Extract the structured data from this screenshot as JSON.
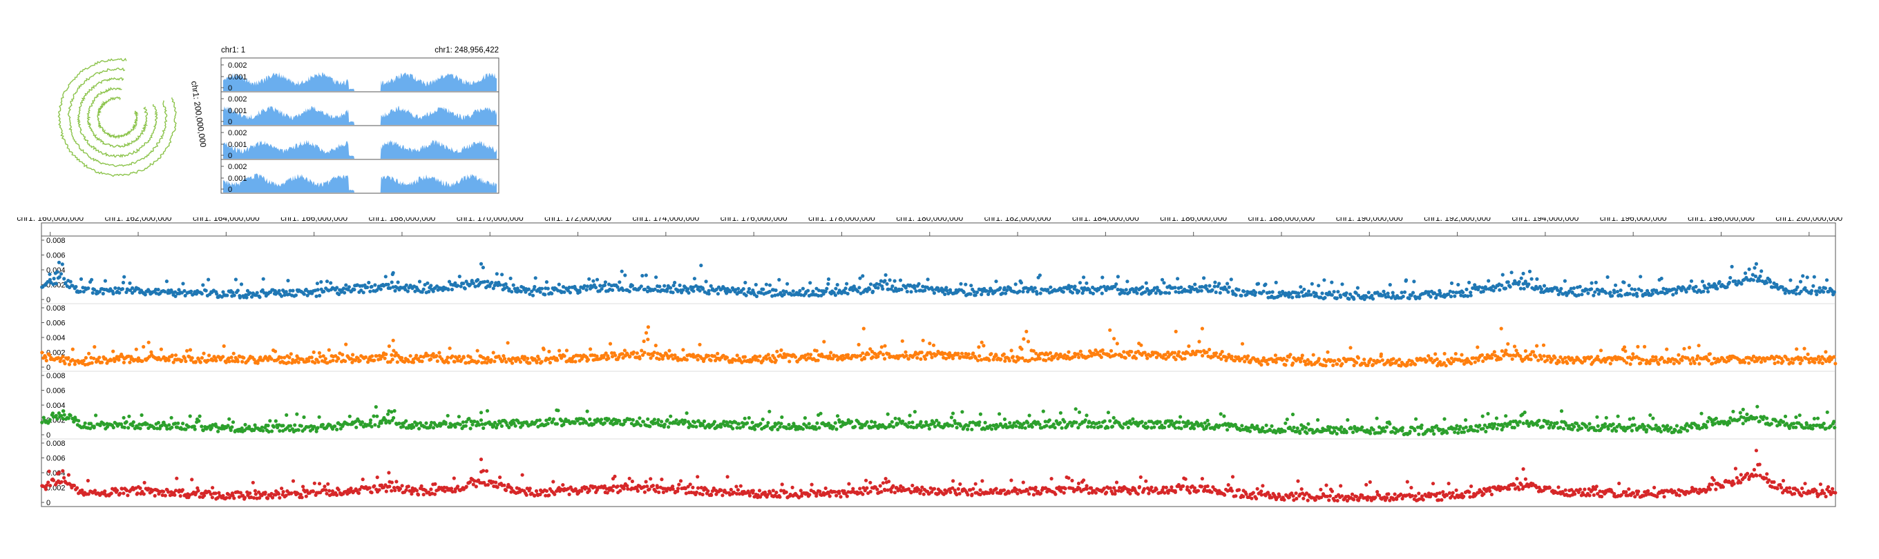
{
  "circular": {
    "label": "chr1: 200,000,000",
    "colors": {
      "line": "#8bc34a"
    }
  },
  "overview": {
    "start_label": "chr1: 1",
    "end_label": "chr1: 248,956,422",
    "tracks": [
      {
        "ticks": [
          "0.002",
          "0.001",
          "0"
        ]
      },
      {
        "ticks": [
          "0.002",
          "0.001",
          "0"
        ]
      },
      {
        "ticks": [
          "0.002",
          "0.001",
          "0"
        ]
      },
      {
        "ticks": [
          "0.002",
          "0.001",
          "0"
        ]
      }
    ],
    "colors": {
      "fill": "#6aaeee",
      "border": "#555555"
    }
  },
  "detail": {
    "x_ticks": [
      {
        "value": 160000000,
        "label": "chr1: 160,000,000"
      },
      {
        "value": 162000000,
        "label": "chr1: 162,000,000"
      },
      {
        "value": 164000000,
        "label": "chr1: 164,000,000"
      },
      {
        "value": 166000000,
        "label": "chr1: 166,000,000"
      },
      {
        "value": 168000000,
        "label": "chr1: 168,000,000"
      },
      {
        "value": 170000000,
        "label": "chr1: 170,000,000"
      },
      {
        "value": 172000000,
        "label": "chr1: 172,000,000"
      },
      {
        "value": 174000000,
        "label": "chr1: 174,000,000"
      },
      {
        "value": 176000000,
        "label": "chr1: 176,000,000"
      },
      {
        "value": 178000000,
        "label": "chr1: 178,000,000"
      },
      {
        "value": 180000000,
        "label": "chr1: 180,000,000"
      },
      {
        "value": 182000000,
        "label": "chr1: 182,000,000"
      },
      {
        "value": 184000000,
        "label": "chr1: 184,000,000"
      },
      {
        "value": 186000000,
        "label": "chr1: 186,000,000"
      },
      {
        "value": 188000000,
        "label": "chr1: 188,000,000"
      },
      {
        "value": 190000000,
        "label": "chr1: 190,000,000"
      },
      {
        "value": 192000000,
        "label": "chr1: 192,000,000"
      },
      {
        "value": 194000000,
        "label": "chr1: 194,000,000"
      },
      {
        "value": 196000000,
        "label": "chr1: 196,000,000"
      },
      {
        "value": 198000000,
        "label": "chr1: 198,000,000"
      },
      {
        "value": 200000000,
        "label": "chr1: 200,000,000"
      }
    ],
    "y_ticks": [
      "0.008",
      "0.006",
      "0.004",
      "0.002",
      "0"
    ]
  },
  "chart_data": {
    "type": "scatter",
    "x_range": [
      159800000,
      200600000
    ],
    "ylim": [
      0,
      0.008
    ],
    "series": [
      {
        "color": "#1f77b4",
        "profile": [
          [
            159800000,
            0.0015
          ],
          [
            160200000,
            0.0028
          ],
          [
            160700000,
            0.0012
          ],
          [
            162000000,
            0.0011
          ],
          [
            164000000,
            0.0007
          ],
          [
            166000000,
            0.0009
          ],
          [
            167500000,
            0.0016
          ],
          [
            168500000,
            0.0014
          ],
          [
            169800000,
            0.0022
          ],
          [
            171000000,
            0.001
          ],
          [
            172800000,
            0.0016
          ],
          [
            174500000,
            0.0014
          ],
          [
            176000000,
            0.0009
          ],
          [
            178000000,
            0.001
          ],
          [
            179000000,
            0.0016
          ],
          [
            181000000,
            0.001
          ],
          [
            183000000,
            0.0013
          ],
          [
            185000000,
            0.0012
          ],
          [
            186200000,
            0.0016
          ],
          [
            187500000,
            0.0007
          ],
          [
            190000000,
            0.0005
          ],
          [
            192000000,
            0.0007
          ],
          [
            193300000,
            0.002
          ],
          [
            194500000,
            0.001
          ],
          [
            196500000,
            0.0009
          ],
          [
            197800000,
            0.0016
          ],
          [
            198800000,
            0.003
          ],
          [
            199500000,
            0.0012
          ],
          [
            200600000,
            0.0011
          ]
        ],
        "peaks": [
          [
            160200000,
            0.005
          ],
          [
            167800000,
            0.0036
          ],
          [
            169800000,
            0.0048
          ],
          [
            173000000,
            0.0038
          ],
          [
            174800000,
            0.0046
          ],
          [
            179000000,
            0.0033
          ],
          [
            183500000,
            0.003
          ],
          [
            193500000,
            0.0035
          ],
          [
            198800000,
            0.0048
          ]
        ]
      },
      {
        "color": "#ff7f0e",
        "profile": [
          [
            159800000,
            0.0015
          ],
          [
            160500000,
            0.0007
          ],
          [
            162000000,
            0.0012
          ],
          [
            165000000,
            0.001
          ],
          [
            168000000,
            0.0011
          ],
          [
            171000000,
            0.001
          ],
          [
            173500000,
            0.0016
          ],
          [
            176000000,
            0.001
          ],
          [
            178500000,
            0.0015
          ],
          [
            180000000,
            0.0016
          ],
          [
            182000000,
            0.0012
          ],
          [
            184000000,
            0.0018
          ],
          [
            185500000,
            0.0015
          ],
          [
            186200000,
            0.0018
          ],
          [
            187500000,
            0.0008
          ],
          [
            190000000,
            0.0006
          ],
          [
            192000000,
            0.0007
          ],
          [
            193000000,
            0.0015
          ],
          [
            194500000,
            0.0009
          ],
          [
            197000000,
            0.0009
          ],
          [
            198500000,
            0.001
          ],
          [
            200600000,
            0.0009
          ]
        ],
        "peaks": [
          [
            167800000,
            0.0036
          ],
          [
            173600000,
            0.0054
          ],
          [
            178500000,
            0.0052
          ],
          [
            180000000,
            0.0032
          ],
          [
            182200000,
            0.0048
          ],
          [
            184100000,
            0.005
          ],
          [
            185600000,
            0.0048
          ],
          [
            186200000,
            0.0052
          ],
          [
            193000000,
            0.0052
          ],
          [
            195800000,
            0.0027
          ]
        ]
      },
      {
        "color": "#2ca02c",
        "profile": [
          [
            159800000,
            0.0018
          ],
          [
            160300000,
            0.0026
          ],
          [
            160800000,
            0.0012
          ],
          [
            162000000,
            0.0013
          ],
          [
            164000000,
            0.0009
          ],
          [
            166000000,
            0.0009
          ],
          [
            167500000,
            0.0016
          ],
          [
            168600000,
            0.0012
          ],
          [
            170000000,
            0.0014
          ],
          [
            172500000,
            0.0018
          ],
          [
            174800000,
            0.0014
          ],
          [
            177000000,
            0.0011
          ],
          [
            179000000,
            0.0014
          ],
          [
            181000000,
            0.0012
          ],
          [
            183500000,
            0.0014
          ],
          [
            185500000,
            0.0014
          ],
          [
            186500000,
            0.0012
          ],
          [
            188000000,
            0.0007
          ],
          [
            191000000,
            0.0005
          ],
          [
            192500000,
            0.0008
          ],
          [
            193600000,
            0.0016
          ],
          [
            195000000,
            0.001
          ],
          [
            197000000,
            0.0008
          ],
          [
            197800000,
            0.0015
          ],
          [
            198800000,
            0.0022
          ],
          [
            199500000,
            0.0013
          ],
          [
            200600000,
            0.001
          ]
        ],
        "peaks": [
          [
            160300000,
            0.0032
          ],
          [
            167700000,
            0.0032
          ],
          [
            169800000,
            0.003
          ],
          [
            198500000,
            0.0034
          ]
        ]
      },
      {
        "color": "#d62728",
        "profile": [
          [
            159800000,
            0.002
          ],
          [
            160200000,
            0.003
          ],
          [
            160700000,
            0.0012
          ],
          [
            162000000,
            0.0015
          ],
          [
            164000000,
            0.0009
          ],
          [
            166000000,
            0.0012
          ],
          [
            167800000,
            0.002
          ],
          [
            168600000,
            0.0013
          ],
          [
            169800000,
            0.0026
          ],
          [
            171000000,
            0.0013
          ],
          [
            172500000,
            0.0018
          ],
          [
            174000000,
            0.0018
          ],
          [
            176000000,
            0.0011
          ],
          [
            178000000,
            0.0012
          ],
          [
            179000000,
            0.0018
          ],
          [
            181000000,
            0.0013
          ],
          [
            183000000,
            0.0016
          ],
          [
            185000000,
            0.0016
          ],
          [
            186200000,
            0.0018
          ],
          [
            187500000,
            0.0009
          ],
          [
            190000000,
            0.0006
          ],
          [
            192000000,
            0.0008
          ],
          [
            193500000,
            0.0022
          ],
          [
            194500000,
            0.0014
          ],
          [
            196500000,
            0.0011
          ],
          [
            197500000,
            0.0016
          ],
          [
            198800000,
            0.0036
          ],
          [
            199500000,
            0.0015
          ],
          [
            200600000,
            0.0012
          ]
        ],
        "peaks": [
          [
            160200000,
            0.004
          ],
          [
            167700000,
            0.004
          ],
          [
            169800000,
            0.0058
          ],
          [
            172800000,
            0.0032
          ],
          [
            179000000,
            0.0032
          ],
          [
            183500000,
            0.003
          ],
          [
            186200000,
            0.0032
          ],
          [
            193500000,
            0.0045
          ],
          [
            198800000,
            0.007
          ]
        ]
      }
    ]
  }
}
